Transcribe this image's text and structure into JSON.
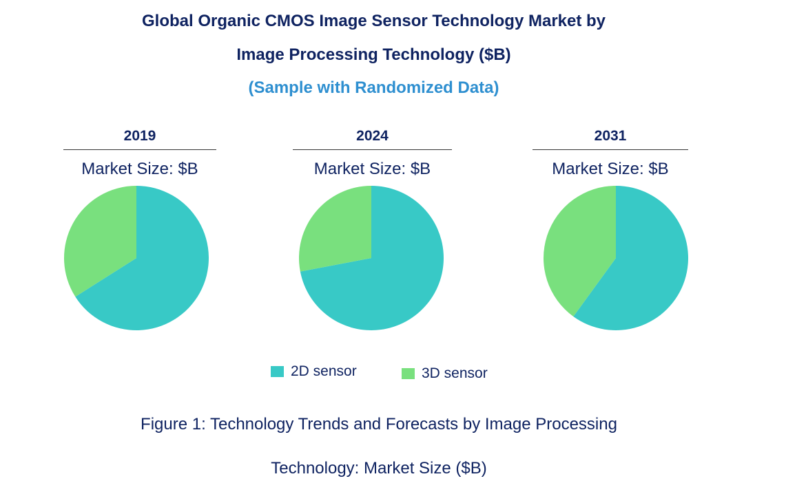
{
  "title": "Global Organic CMOS Image Sensor Technology Market by",
  "title_line2": "Image Processing Technology ($B)",
  "subtitle": "(Sample with Randomized Data)",
  "market_size_label": "Market Size: $B",
  "caption_line1": "Figure 1: Technology Trends and Forecasts by Image Processing",
  "caption_line2": "Technology: Market Size ($B)",
  "colors": {
    "2D sensor": "#38c9c6",
    "3D sensor": "#79e07e"
  },
  "chart_data": [
    {
      "type": "pie",
      "title": "2019",
      "categories": [
        "2D sensor",
        "3D sensor"
      ],
      "values": [
        0.66,
        0.34
      ]
    },
    {
      "type": "pie",
      "title": "2024",
      "categories": [
        "2D sensor",
        "3D sensor"
      ],
      "values": [
        0.72,
        0.28
      ]
    },
    {
      "type": "pie",
      "title": "2031",
      "categories": [
        "2D sensor",
        "3D sensor"
      ],
      "values": [
        0.6,
        0.4
      ]
    }
  ],
  "legend": [
    "2D sensor",
    "3D sensor"
  ]
}
